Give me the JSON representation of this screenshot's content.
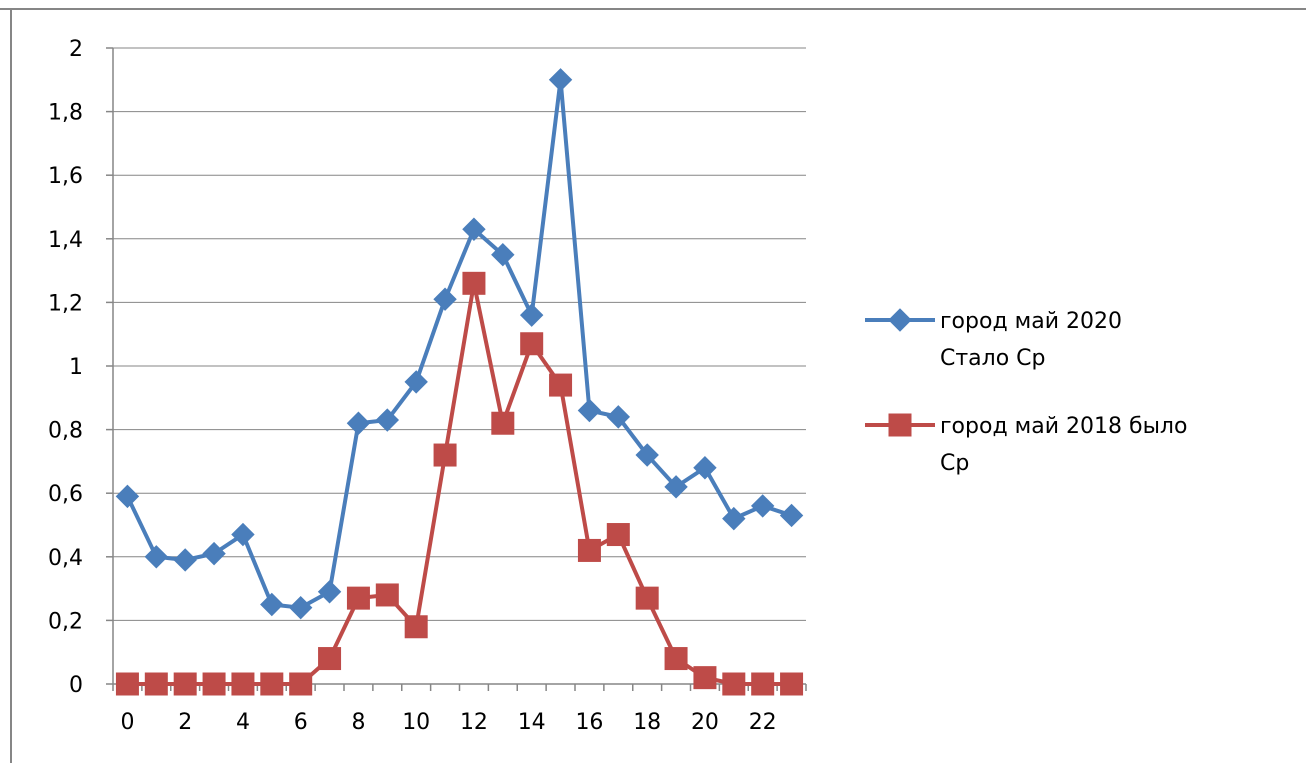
{
  "chart_data": {
    "type": "line",
    "ylim": [
      0,
      2
    ],
    "yticks": [
      "0",
      "0,2",
      "0,4",
      "0,6",
      "0,8",
      "1",
      "1,2",
      "1,4",
      "1,6",
      "1,8",
      "2"
    ],
    "xticks": [
      "0",
      "2",
      "4",
      "6",
      "8",
      "10",
      "12",
      "14",
      "16",
      "18",
      "20",
      "22"
    ],
    "x": [
      0,
      1,
      2,
      3,
      4,
      5,
      6,
      7,
      8,
      9,
      10,
      11,
      12,
      13,
      14,
      15,
      16,
      17,
      18,
      19,
      20,
      21,
      22,
      23
    ],
    "grid": true,
    "legend_position": "right",
    "series": [
      {
        "name": "город май   2020 Стало Ср",
        "legend_line1": "город май   2020",
        "legend_line2": "Стало Ср",
        "color": "#4a7ebb",
        "marker": "diamond",
        "values": [
          0.59,
          0.4,
          0.39,
          0.41,
          0.47,
          0.25,
          0.24,
          0.29,
          0.82,
          0.83,
          0.95,
          1.21,
          1.43,
          1.35,
          1.16,
          1.9,
          0.86,
          0.84,
          0.72,
          0.62,
          0.68,
          0.52,
          0.56,
          0.53
        ]
      },
      {
        "name": "город май  2018 было Ср",
        "legend_line1": "город май  2018 было",
        "legend_line2": "Ср",
        "color": "#be4b48",
        "marker": "square",
        "values": [
          0,
          0,
          0,
          0,
          0,
          0,
          0,
          0.08,
          0.27,
          0.28,
          0.18,
          0.72,
          1.26,
          0.82,
          1.07,
          0.94,
          0.42,
          0.47,
          0.27,
          0.08,
          0.02,
          0,
          0,
          0
        ]
      }
    ]
  }
}
